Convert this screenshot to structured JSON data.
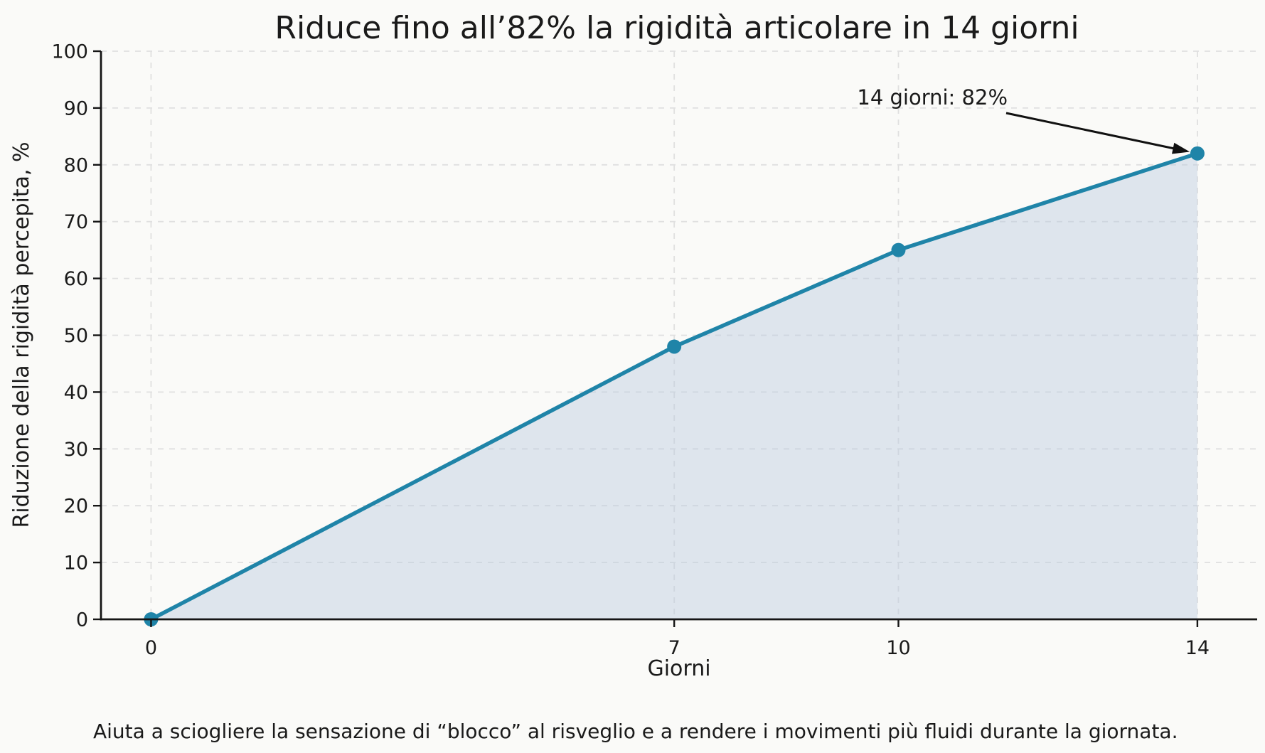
{
  "figure": {
    "footer": "Aiuta a sciogliere la sensazione di “blocco” al risveglio e a rendere i movimenti più fluidi durante la giornata.",
    "background": "#fafaf8"
  },
  "chart_data": {
    "type": "area",
    "title": "Riduce fino all’82% la rigidità articolare in 14 giorni",
    "xlabel": "Giorni",
    "ylabel": "Riduzione della rigidità percepita, %",
    "x": [
      0,
      7,
      10,
      14
    ],
    "series": [
      {
        "name": "Riduzione della rigidità percepita",
        "values": [
          0,
          48,
          65,
          82
        ]
      }
    ],
    "xticks": [
      0,
      7,
      10,
      14
    ],
    "yticks": [
      0,
      10,
      20,
      30,
      40,
      50,
      60,
      70,
      80,
      90,
      100
    ],
    "xlim": [
      -0.67,
      14.8
    ],
    "ylim": [
      0,
      100
    ],
    "grid": "dashed-both-axes",
    "legend": "none",
    "annotation": {
      "text": "14 giorni: 82%",
      "target_x": 14,
      "target_y": 82
    },
    "colors": {
      "line": "#1f84a8",
      "marker": "#1f84a8",
      "fill": "#b7c8dd",
      "fill_opacity": "0.42",
      "grid": "#e0e0e0",
      "axis": "#151515",
      "text": "#1a1a1a",
      "arrow": "#111111",
      "background": "#fafaf8"
    }
  }
}
